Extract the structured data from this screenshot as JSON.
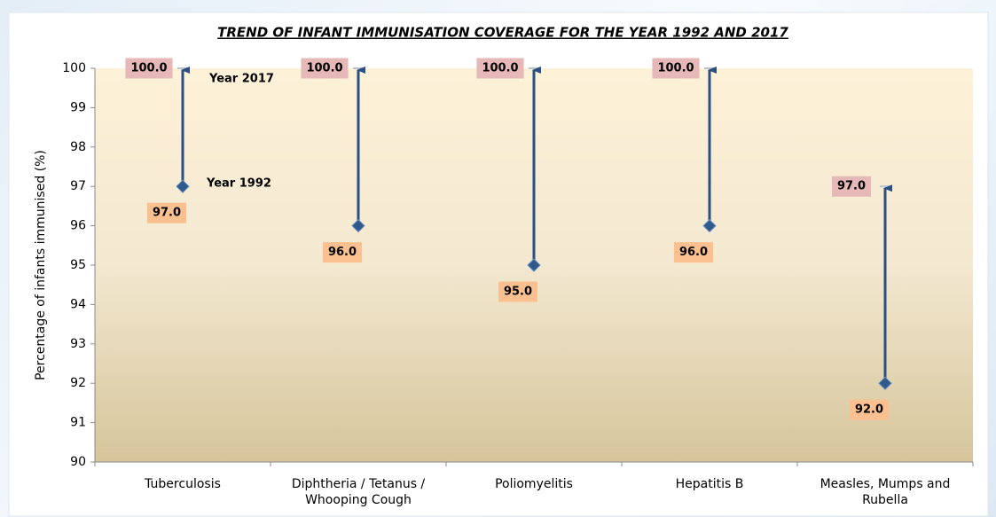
{
  "chart_data": {
    "type": "dumbbell",
    "title": "TREND OF INFANT IMMUNISATION COVERAGE FOR THE YEAR 1992 AND 2017",
    "y_label": "Percentage of infants immunised (%)",
    "categories": [
      "Tuberculosis",
      "Diphtheria / Tetanus / Whooping Cough",
      "Poliomyelitis",
      "Hepatitis B",
      "Measles, Mumps and Rubella"
    ],
    "series": [
      {
        "name": "Year 1992",
        "color": "#2e5a8c",
        "values": [
          97,
          96,
          95,
          96,
          92
        ],
        "value_labels": [
          "97.0",
          "96.0",
          "95.0",
          "96.0",
          "92.0"
        ]
      },
      {
        "name": "Year 2017",
        "color": "#2b4f82",
        "values": [
          100,
          100,
          100,
          100,
          97
        ],
        "value_labels": [
          "100.0",
          "100.0",
          "100.0",
          "100.0",
          "97.0"
        ]
      }
    ],
    "ylim": [
      90,
      100
    ],
    "yticks": [
      90,
      91,
      92,
      93,
      94,
      95,
      96,
      97,
      98,
      99,
      100
    ]
  }
}
